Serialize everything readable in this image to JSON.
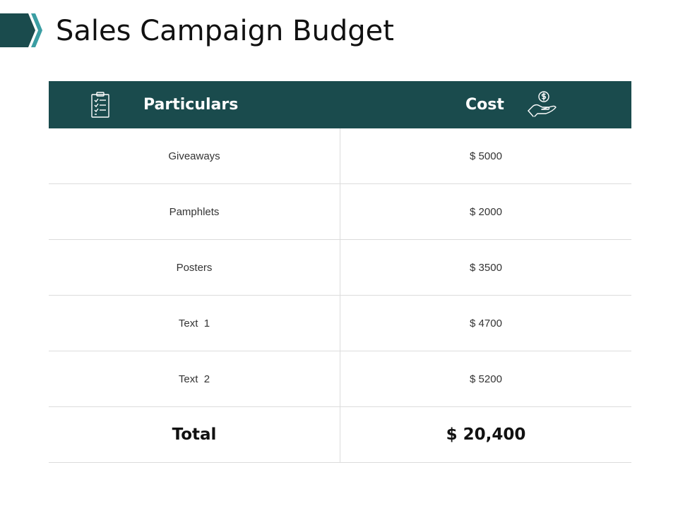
{
  "title": "Sales Campaign Budget",
  "colors": {
    "header_bg": "#1a4b4d",
    "chevron_dark": "#1a4b4d",
    "chevron_accent": "#3b9ea3",
    "divider": "#dcdcdc"
  },
  "table": {
    "headers": {
      "particulars": "Particulars",
      "cost": "Cost",
      "particulars_icon": "checklist-icon",
      "cost_icon": "money-hand-icon"
    },
    "rows": [
      {
        "particular": "Giveaways",
        "cost": "$ 5000"
      },
      {
        "particular": "Pamphlets",
        "cost": "$ 2000"
      },
      {
        "particular": "Posters",
        "cost": "$ 3500"
      },
      {
        "particular": "Text  1",
        "cost": "$ 4700"
      },
      {
        "particular": "Text  2",
        "cost": "$ 5200"
      }
    ],
    "total": {
      "label": "Total",
      "value": "$ 20,400"
    }
  }
}
